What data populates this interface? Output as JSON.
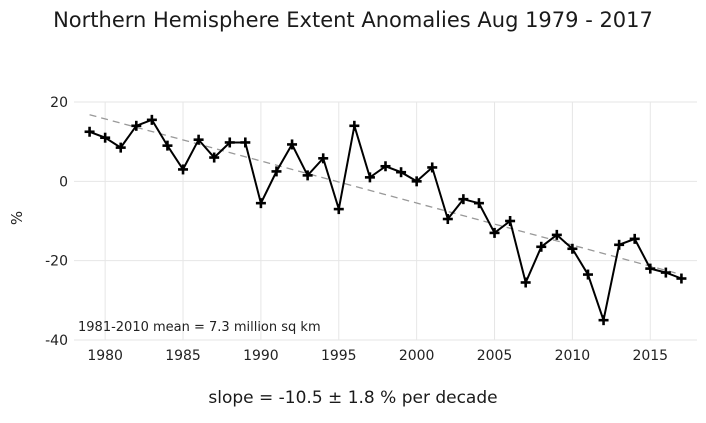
{
  "chart_data": {
    "type": "line",
    "title": "Northern Hemisphere Extent Anomalies Aug 1979 - 2017",
    "xlabel": "",
    "ylabel": "%",
    "xlim": [
      1978,
      2018
    ],
    "ylim": [
      -40,
      20
    ],
    "x_ticks": [
      1980,
      1985,
      1990,
      1995,
      2000,
      2005,
      2010,
      2015
    ],
    "y_ticks": [
      -40,
      -20,
      0,
      20
    ],
    "grid": true,
    "series": [
      {
        "x": [
          1979,
          1980,
          1981,
          1982,
          1983,
          1984,
          1985,
          1986,
          1987,
          1988,
          1989,
          1990,
          1991,
          1992,
          1993,
          1994,
          1995,
          1996,
          1997,
          1998,
          1999,
          2000,
          2001,
          2002,
          2003,
          2004,
          2005,
          2006,
          2007,
          2008,
          2009,
          2010,
          2011,
          2012,
          2013,
          2014,
          2015,
          2016,
          2017
        ],
        "y": [
          12.5,
          11,
          8.5,
          14,
          15.5,
          9,
          3,
          10.5,
          6,
          9.8,
          9.8,
          -5.5,
          2.5,
          9.3,
          1.5,
          5.8,
          -7,
          14,
          1,
          3.8,
          2.3,
          0,
          3.5,
          -9.5,
          -4.5,
          -5.5,
          -13,
          -10,
          -25.5,
          -16.5,
          -13.5,
          -17,
          -23.5,
          -35,
          -16,
          -14.5,
          -22,
          -23,
          -24.5
        ],
        "color": "#000000"
      }
    ],
    "trend": {
      "start": [
        1979,
        16.8
      ],
      "end": [
        2017,
        -23.5
      ],
      "color": "#999999",
      "style": "dashed"
    },
    "annotation": "1981-2010 mean = 7.3 million sq km",
    "slope_text": "slope = -10.5 ± 1.8 % per decade"
  }
}
